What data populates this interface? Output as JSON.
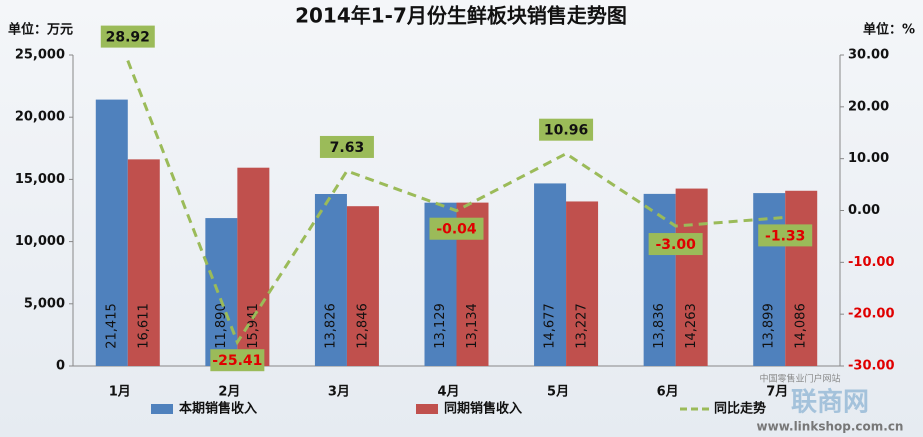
{
  "chart_data": {
    "type": "bar",
    "title": "2014年1-7月份生鲜板块销售走势图",
    "y_label": "单位：万元",
    "y2_label": "单位：%",
    "categories": [
      "1月",
      "2月",
      "3月",
      "4月",
      "5月",
      "6月",
      "7月"
    ],
    "series": [
      {
        "name": "本期销售收入",
        "type": "bar",
        "color": "#4f81bd",
        "values": [
          21415,
          11890,
          13826,
          13129,
          14677,
          13836,
          13899
        ],
        "value_labels": [
          "21,415",
          "11,890",
          "13,826",
          "13,129",
          "14,677",
          "13,836",
          "13,899"
        ]
      },
      {
        "name": "同期销售收入",
        "type": "bar",
        "color": "#c0504d",
        "values": [
          16611,
          15941,
          12846,
          13134,
          13227,
          14263,
          14086
        ],
        "value_labels": [
          "16,611",
          "15,941",
          "12,846",
          "13,134",
          "13,227",
          "14,263",
          "14,086"
        ]
      },
      {
        "name": "同比走势",
        "type": "line",
        "axis": "y2",
        "color": "#9bbb59",
        "values": [
          28.92,
          -25.41,
          7.63,
          -0.04,
          10.96,
          -3.0,
          -1.33
        ],
        "value_labels": [
          "28.92",
          "-25.41",
          "7.63",
          "-0.04",
          "10.96",
          "-3.00",
          "-1.33"
        ]
      }
    ],
    "ylim": [
      0,
      25000
    ],
    "yticks": [
      0,
      {
        "value": 5000,
        "label": "5,000"
      },
      {
        "value": 10000,
        "label": "10,000"
      },
      {
        "value": 15000,
        "label": "15,000"
      },
      {
        "value": 20000,
        "label": "20,000"
      },
      {
        "value": 25000,
        "label": "25,000"
      }
    ],
    "y2lim": [
      -30,
      30
    ],
    "y2ticks": [
      {
        "value": -30,
        "label": "-30.00"
      },
      {
        "value": -20,
        "label": "-20.00"
      },
      {
        "value": -10,
        "label": "-10.00"
      },
      {
        "value": 0,
        "label": "0.00"
      },
      {
        "value": 10,
        "label": "10.00"
      },
      {
        "value": 20,
        "label": "20.00"
      },
      {
        "value": 30,
        "label": "30.00"
      }
    ],
    "negative_color": "#e00000",
    "legend": "bottom",
    "watermark": {
      "slogan": "中国零售业门户网站",
      "brand": "联商网",
      "url": "www.linkshop.com.cn"
    }
  }
}
